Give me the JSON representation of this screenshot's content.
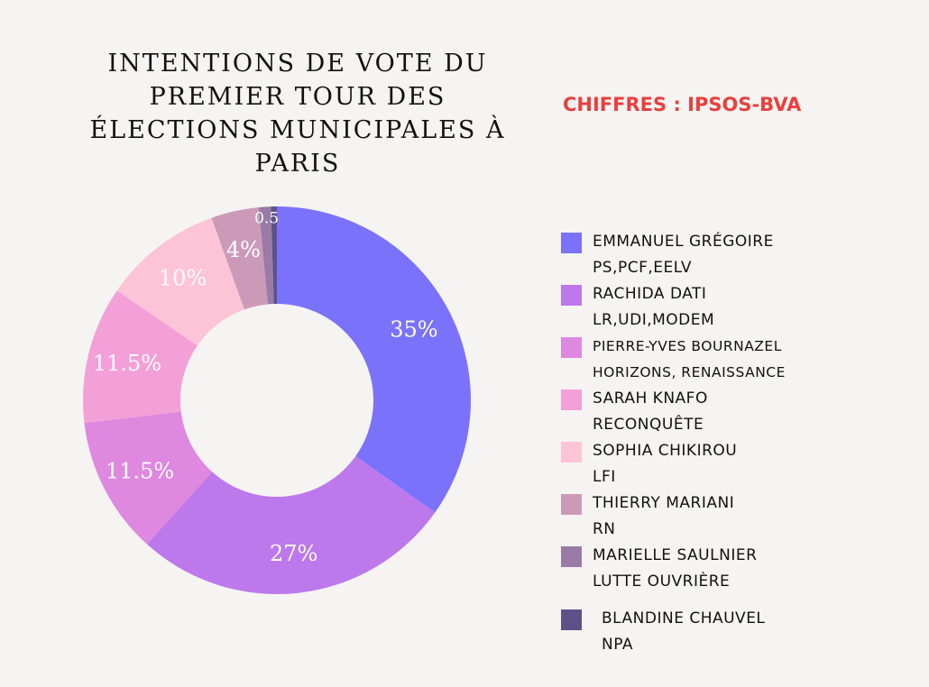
{
  "chart_data": {
    "type": "pie",
    "title": "INTENTIONS DE VOTE DU PREMIER TOUR DES ÉLECTIONS MUNICIPALES À PARIS",
    "source": "CHIFFRES : IPSOS-BVA",
    "slices": [
      {
        "name": "EMMANUEL GRÉGOIRE",
        "party": "PS,PCF,EELV",
        "value": 35,
        "label": "35%",
        "color": "#7b72fb"
      },
      {
        "name": "RACHIDA DATI",
        "party": "LR,UDI,MODEM",
        "value": 27,
        "label": "27%",
        "color": "#bd78ec"
      },
      {
        "name": "PIERRE-YVES BOURNAZEL",
        "party": "HORIZONS, RENAISSANCE",
        "value": 11.5,
        "label": "11.5%",
        "color": "#df88e0"
      },
      {
        "name": "SARAH KNAFO",
        "party": "RECONQUÊTE",
        "value": 11.5,
        "label": "11.5%",
        "color": "#f3a0d8"
      },
      {
        "name": "SOPHIA CHIKIROU",
        "party": "LFI",
        "value": 10,
        "label": "10%",
        "color": "#fdc3d6"
      },
      {
        "name": "THIERRY MARIANI",
        "party": "RN",
        "value": 4,
        "label": "4%",
        "color": "#cc9ab9"
      },
      {
        "name": "MARIELLE SAULNIER",
        "party": "LUTTE OUVRIÈRE",
        "value": 1,
        "label": "",
        "color": "#9a7aa6"
      },
      {
        "name": "BLANDINE CHAUVEL",
        "party": "NPA",
        "value": 0.5,
        "label": "0.5",
        "color": "#5c5288"
      }
    ]
  }
}
